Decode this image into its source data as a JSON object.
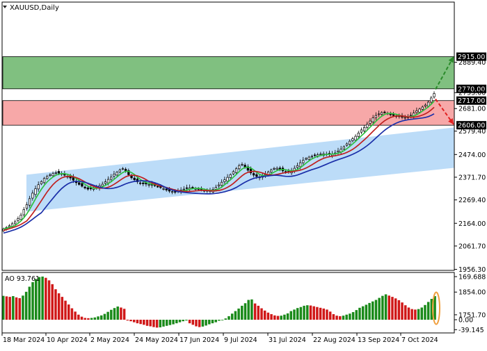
{
  "window": {
    "title": "XAUUSD,Daily",
    "menu_icon": "triangle-down-icon"
  },
  "indicator": {
    "label": "AO 93.761"
  },
  "chart_data": [
    {
      "type": "candlestick",
      "symbol": "XAUUSD",
      "timeframe": "Daily",
      "x_labels": [
        "18 Mar 2024",
        "10 Apr 2024",
        "2 May 2024",
        "24 May 2024",
        "17 Jun 2024",
        "9 Jul 2024",
        "31 Jul 2024",
        "22 Aug 2024",
        "13 Sep 2024",
        "7 Oct 2024"
      ],
      "y_ticks": [
        "2579.40",
        "2474.00",
        "2371.70",
        "2269.40",
        "2164.00",
        "2061.70",
        "1956.30",
        "1854.00",
        "1751.70"
      ],
      "price_tags": [
        {
          "label": "2915.00",
          "style": "dark"
        },
        {
          "label": "2889.40",
          "style": "plain"
        },
        {
          "label": "2770.00",
          "style": "dark"
        },
        {
          "label": "2753.00",
          "style": "plain"
        },
        {
          "label": "2717.00",
          "style": "dark"
        },
        {
          "label": "2681.00",
          "style": "plain"
        },
        {
          "label": "2606.00",
          "style": "dark"
        }
      ],
      "zones": [
        {
          "name": "resistance-target",
          "from": 2770,
          "to": 2915,
          "color": "#80c080"
        },
        {
          "name": "support-target",
          "from": 2606,
          "to": 2717,
          "color": "#f7a8a8"
        }
      ],
      "channel": {
        "color": "#bcdcf8",
        "start_low": 2216,
        "start_high": 2383,
        "end_low": 2414,
        "end_high": 2596
      },
      "moving_averages": [
        {
          "color": "#2fbf3f"
        },
        {
          "color": "#c02020"
        },
        {
          "color": "#1a2ea8"
        }
      ],
      "scenarios": [
        {
          "direction": "up",
          "target": 2915,
          "color": "#2a8a2a"
        },
        {
          "direction": "down",
          "target": 2610,
          "color": "#e02020"
        }
      ],
      "closes": [
        2138,
        2145,
        2153,
        2162,
        2171,
        2185,
        2201,
        2226,
        2248,
        2275,
        2300,
        2320,
        2338,
        2352,
        2366,
        2375,
        2382,
        2388,
        2392,
        2390,
        2386,
        2381,
        2375,
        2368,
        2358,
        2347,
        2339,
        2331,
        2323,
        2318,
        2319,
        2322,
        2327,
        2333,
        2340,
        2351,
        2362,
        2372,
        2385,
        2394,
        2404,
        2410,
        2399,
        2383,
        2369,
        2360,
        2351,
        2346,
        2342,
        2341,
        2339,
        2336,
        2333,
        2330,
        2325,
        2320,
        2314,
        2309,
        2307,
        2305,
        2310,
        2314,
        2318,
        2321,
        2324,
        2323,
        2321,
        2318,
        2315,
        2312,
        2309,
        2308,
        2316,
        2326,
        2337,
        2349,
        2360,
        2371,
        2383,
        2397,
        2410,
        2424,
        2430,
        2418,
        2403,
        2391,
        2381,
        2375,
        2373,
        2378,
        2385,
        2395,
        2404,
        2411,
        2412,
        2407,
        2400,
        2396,
        2397,
        2402,
        2412,
        2424,
        2437,
        2448,
        2456,
        2462,
        2466,
        2470,
        2473,
        2476,
        2477,
        2476,
        2474,
        2477,
        2481,
        2490,
        2498,
        2509,
        2522,
        2534,
        2545,
        2556,
        2571,
        2585,
        2596,
        2610,
        2625,
        2639,
        2650,
        2657,
        2663,
        2664,
        2660,
        2653,
        2650,
        2648,
        2645,
        2642,
        2641,
        2643,
        2651,
        2661,
        2671,
        2679,
        2688,
        2697,
        2710,
        2729,
        2749
      ],
      "ao": {
        "y_ticks": [
          "169.688",
          "0.00",
          "-39.145"
        ],
        "values": [
          94,
          92,
          90,
          93,
          88,
          85,
          95,
          110,
          130,
          148,
          160,
          168,
          170,
          165,
          155,
          140,
          120,
          104,
          90,
          75,
          60,
          45,
          32,
          20,
          12,
          7,
          6,
          7,
          9,
          13,
          17,
          23,
          31,
          39,
          46,
          52,
          48,
          43,
          -3,
          -6,
          -10,
          -14,
          -17,
          -20,
          -24,
          -26,
          -29,
          -31,
          -30,
          -27,
          -24,
          -21,
          -18,
          -14,
          -10,
          -6,
          -3,
          -14,
          -20,
          -26,
          -29,
          -27,
          -23,
          -18,
          -14,
          -10,
          -4,
          0,
          5,
          14,
          24,
          34,
          44,
          55,
          65,
          78,
          80,
          64,
          55,
          45,
          36,
          28,
          22,
          17,
          15,
          16,
          20,
          25,
          34,
          40,
          46,
          50,
          55,
          57,
          56,
          53,
          50,
          47,
          44,
          40,
          32,
          22,
          16,
          14,
          16,
          20,
          24,
          30,
          38,
          47,
          53,
          59,
          66,
          72,
          78,
          86,
          94,
          100,
          95,
          90,
          84,
          77,
          68,
          57,
          48,
          42,
          40,
          42,
          48,
          58,
          70,
          82,
          93
        ]
      }
    }
  ]
}
